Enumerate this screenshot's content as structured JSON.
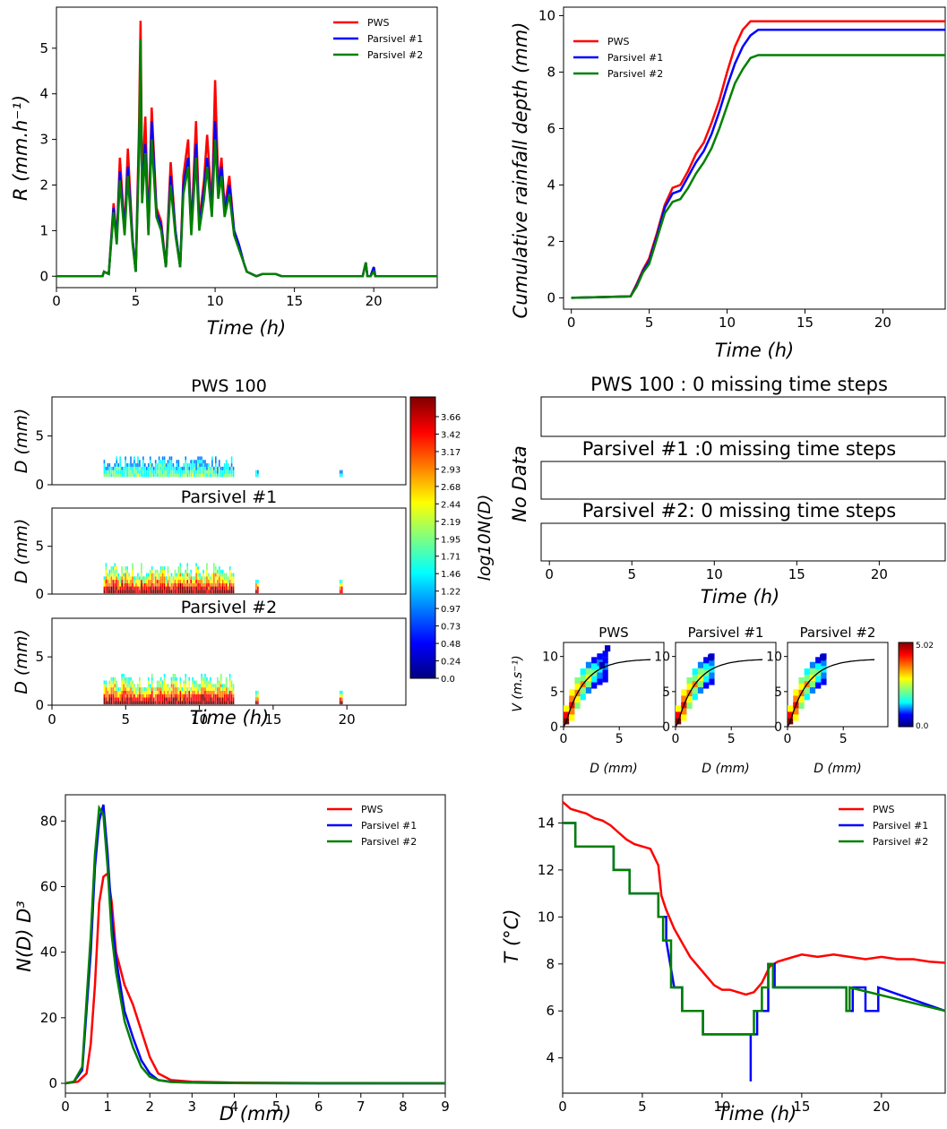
{
  "colors": {
    "pws": "#ff0000",
    "parsivel1": "#0000ff",
    "parsivel2": "#008000",
    "fit": "#000000"
  },
  "legend_labels": [
    "PWS",
    "Parsivel #1",
    "Parsivel #2"
  ],
  "chart_data": [
    {
      "id": "rain_rate",
      "type": "line",
      "xlabel": "Time (h)",
      "ylabel": "R (mm.h⁻¹)",
      "xlim": [
        0,
        24
      ],
      "ylim": [
        -0.25,
        5.9
      ],
      "xticks": [
        0,
        5,
        10,
        15,
        20
      ],
      "yticks": [
        0,
        1,
        2,
        3,
        4,
        5
      ],
      "legend": "top-right",
      "series": [
        {
          "name": "PWS",
          "x": [
            0,
            2.9,
            3.0,
            3.3,
            3.6,
            3.8,
            4.0,
            4.3,
            4.5,
            4.8,
            5.0,
            5.2,
            5.3,
            5.4,
            5.6,
            5.8,
            6.0,
            6.3,
            6.6,
            6.9,
            7.2,
            7.5,
            7.8,
            8.0,
            8.3,
            8.5,
            8.8,
            9.0,
            9.3,
            9.5,
            9.8,
            10.0,
            10.2,
            10.4,
            10.6,
            10.9,
            11.2,
            11.5,
            11.8,
            12.0,
            12.3,
            12.6,
            13.0,
            13.8,
            14.2,
            19.3,
            19.5,
            19.6,
            19.8,
            20.0,
            20.1,
            24
          ],
          "y": [
            0,
            0,
            0.1,
            0.05,
            1.6,
            0.8,
            2.6,
            1.0,
            2.8,
            0.8,
            0.1,
            3.2,
            5.6,
            2.0,
            3.5,
            1.0,
            3.7,
            1.5,
            1.2,
            0.2,
            2.5,
            1.0,
            0.2,
            2.2,
            3.0,
            1.0,
            3.4,
            1.2,
            2.1,
            3.1,
            1.5,
            4.3,
            2.0,
            2.6,
            1.5,
            2.2,
            1.0,
            0.7,
            0.3,
            0.1,
            0.05,
            0,
            0.05,
            0.05,
            0,
            0,
            0.3,
            0,
            0,
            0.2,
            0,
            0
          ]
        },
        {
          "name": "Parsivel #1",
          "x": [
            0,
            2.9,
            3.0,
            3.3,
            3.6,
            3.8,
            4.0,
            4.3,
            4.5,
            4.8,
            5.0,
            5.2,
            5.3,
            5.4,
            5.6,
            5.8,
            6.0,
            6.3,
            6.6,
            6.9,
            7.2,
            7.5,
            7.8,
            8.0,
            8.3,
            8.5,
            8.8,
            9.0,
            9.3,
            9.5,
            9.8,
            10.0,
            10.2,
            10.4,
            10.6,
            10.9,
            11.2,
            11.5,
            11.8,
            12.0,
            12.3,
            12.6,
            13.0,
            13.8,
            14.2,
            19.3,
            19.5,
            19.6,
            19.8,
            20.0,
            20.1,
            24
          ],
          "y": [
            0,
            0,
            0.1,
            0.05,
            1.5,
            0.8,
            2.3,
            1.0,
            2.4,
            0.8,
            0.1,
            2.8,
            4.6,
            1.8,
            2.9,
            1.0,
            3.4,
            1.4,
            1.1,
            0.2,
            2.2,
            1.0,
            0.2,
            2.0,
            2.6,
            1.0,
            2.9,
            1.1,
            1.9,
            2.6,
            1.4,
            3.4,
            1.9,
            2.4,
            1.4,
            2.0,
            1.0,
            0.7,
            0.3,
            0.1,
            0.05,
            0,
            0.05,
            0.05,
            0,
            0,
            0.3,
            0,
            0,
            0.2,
            0,
            0
          ]
        },
        {
          "name": "Parsivel #2",
          "x": [
            0,
            2.9,
            3.0,
            3.3,
            3.6,
            3.8,
            4.0,
            4.3,
            4.5,
            4.8,
            5.0,
            5.2,
            5.3,
            5.4,
            5.6,
            5.8,
            6.0,
            6.3,
            6.6,
            6.9,
            7.2,
            7.5,
            7.8,
            8.0,
            8.3,
            8.5,
            8.8,
            9.0,
            9.3,
            9.5,
            9.8,
            10.0,
            10.2,
            10.4,
            10.6,
            10.9,
            11.2,
            11.5,
            11.8,
            12.0,
            12.3,
            12.6,
            13.0,
            13.8,
            14.2,
            19.3,
            19.5,
            19.6,
            19.8,
            20.0,
            20.1,
            24
          ],
          "y": [
            0,
            0,
            0.1,
            0.05,
            1.4,
            0.7,
            2.1,
            0.9,
            2.2,
            0.7,
            0.1,
            2.6,
            5.2,
            1.6,
            2.7,
            0.9,
            3.0,
            1.3,
            1.0,
            0.2,
            2.0,
            0.9,
            0.2,
            1.8,
            2.4,
            0.9,
            2.6,
            1.0,
            1.7,
            2.4,
            1.3,
            3.0,
            1.7,
            2.2,
            1.3,
            1.8,
            0.9,
            0.6,
            0.3,
            0.1,
            0.05,
            0,
            0.05,
            0.05,
            0,
            0,
            0.3,
            0,
            0,
            0.1,
            0,
            0
          ]
        }
      ]
    },
    {
      "id": "cumulative",
      "type": "line",
      "xlabel": "Time (h)",
      "ylabel": "Cumulative rainfall depth (mm)",
      "xlim": [
        -0.5,
        24
      ],
      "ylim": [
        -0.4,
        10.3
      ],
      "xticks": [
        0,
        5,
        10,
        15,
        20
      ],
      "yticks": [
        0,
        2,
        4,
        6,
        8,
        10
      ],
      "legend": "top-left",
      "series": [
        {
          "name": "PWS",
          "x": [
            0,
            3.8,
            4.2,
            4.6,
            5.0,
            5.5,
            6.0,
            6.5,
            7.0,
            7.5,
            8.0,
            8.5,
            9.0,
            9.5,
            10.0,
            10.5,
            11.0,
            11.5,
            12.0,
            13,
            16,
            20,
            24
          ],
          "y": [
            0,
            0.05,
            0.5,
            1.0,
            1.4,
            2.3,
            3.3,
            3.9,
            4.0,
            4.5,
            5.1,
            5.5,
            6.2,
            7.0,
            8.0,
            8.9,
            9.5,
            9.8,
            9.8,
            9.8,
            9.8,
            9.8,
            9.8
          ]
        },
        {
          "name": "Parsivel #1",
          "x": [
            0,
            3.8,
            4.2,
            4.6,
            5.0,
            5.5,
            6.0,
            6.5,
            7.0,
            7.5,
            8.0,
            8.5,
            9.0,
            9.5,
            10.0,
            10.5,
            11.0,
            11.5,
            12.0,
            13,
            16,
            20,
            24
          ],
          "y": [
            0,
            0.05,
            0.45,
            0.95,
            1.3,
            2.2,
            3.2,
            3.7,
            3.8,
            4.3,
            4.8,
            5.2,
            5.8,
            6.6,
            7.5,
            8.3,
            8.9,
            9.3,
            9.5,
            9.5,
            9.5,
            9.5,
            9.5
          ]
        },
        {
          "name": "Parsivel #2",
          "x": [
            0,
            3.8,
            4.2,
            4.6,
            5.0,
            5.5,
            6.0,
            6.5,
            7.0,
            7.5,
            8.0,
            8.5,
            9.0,
            9.5,
            10.0,
            10.5,
            11.0,
            11.5,
            12.0,
            13,
            16,
            20,
            24
          ],
          "y": [
            0,
            0.05,
            0.4,
            0.9,
            1.2,
            2.1,
            3.0,
            3.4,
            3.5,
            3.9,
            4.4,
            4.8,
            5.3,
            6.0,
            6.8,
            7.6,
            8.1,
            8.5,
            8.6,
            8.6,
            8.6,
            8.6,
            8.6
          ]
        }
      ]
    },
    {
      "id": "spectrograms",
      "type": "heatmap",
      "panel_titles": [
        "PWS 100",
        "Parsivel #1",
        "Parsivel #2"
      ],
      "xlabel": "Time (h)",
      "ylabel": "D (mm)",
      "xlim": [
        0,
        24
      ],
      "ylim": [
        0,
        9
      ],
      "xticks": [
        0,
        5,
        10,
        15,
        20
      ],
      "yticks": [
        0,
        5
      ],
      "colorbar_label": "log10N(D)",
      "colorbar_ticks": [
        "3.66",
        "3.42",
        "3.17",
        "2.93",
        "2.68",
        "2.44",
        "2.19",
        "1.95",
        "1.71",
        "1.46",
        "1.22",
        "0.97",
        "0.73",
        "0.48",
        "0.24",
        "0.0"
      ],
      "active_periods_h": [
        [
          3.5,
          12.3
        ],
        [
          13.8,
          14.0
        ],
        [
          19.5,
          19.7
        ]
      ]
    },
    {
      "id": "missing_data",
      "type": "line",
      "panel_titles": [
        "PWS 100 : 0 missing time steps",
        "Parsivel #1 :0 missing time steps",
        "Parsivel #2: 0 missing time steps"
      ],
      "ylabel": "No Data",
      "xlabel": "Time (h)",
      "xlim": [
        -0.5,
        24
      ],
      "xticks": [
        0,
        5,
        10,
        15,
        20
      ]
    },
    {
      "id": "velocity_diameter",
      "type": "heatmap",
      "panel_titles": [
        "PWS",
        "Parsivel #1",
        "Parsivel #2"
      ],
      "xlabel": "D (mm)",
      "ylabel": "V (m.s⁻¹)",
      "xlim": [
        0,
        9
      ],
      "ylim": [
        0,
        12
      ],
      "xticks": [
        0,
        5
      ],
      "yticks": [
        0,
        5,
        10
      ],
      "colorbar_ticks": [
        "5.02",
        "0.0"
      ]
    },
    {
      "id": "dsd_moment",
      "type": "line",
      "xlabel": "D (mm)",
      "ylabel": "N(D) D³",
      "xlim": [
        0,
        9
      ],
      "ylim": [
        -3,
        88
      ],
      "xticks": [
        0,
        1,
        2,
        3,
        4,
        5,
        6,
        7,
        8,
        9
      ],
      "yticks": [
        0,
        20,
        40,
        60,
        80
      ],
      "legend": "top-right",
      "series": [
        {
          "name": "PWS",
          "x": [
            0,
            0.3,
            0.5,
            0.6,
            0.7,
            0.8,
            0.9,
            1.0,
            1.1,
            1.2,
            1.4,
            1.6,
            1.8,
            2.0,
            2.2,
            2.5,
            3.0,
            4,
            6,
            9
          ],
          "y": [
            0,
            0.5,
            3,
            12,
            30,
            55,
            63,
            64,
            55,
            40,
            30,
            24,
            16,
            8,
            3,
            1,
            0.5,
            0.2,
            0.1,
            0
          ]
        },
        {
          "name": "Parsivel #1",
          "x": [
            0,
            0.2,
            0.4,
            0.6,
            0.7,
            0.8,
            0.9,
            1.0,
            1.1,
            1.2,
            1.4,
            1.6,
            1.8,
            2.0,
            2.2,
            2.5,
            3.0,
            4,
            6,
            9
          ],
          "y": [
            0,
            0.5,
            4,
            40,
            66,
            80,
            85,
            70,
            50,
            38,
            22,
            14,
            7,
            3,
            1,
            0.5,
            0.2,
            0.1,
            0,
            0
          ]
        },
        {
          "name": "Parsivel #2",
          "x": [
            0,
            0.2,
            0.4,
            0.6,
            0.7,
            0.8,
            0.9,
            1.0,
            1.1,
            1.2,
            1.4,
            1.6,
            1.8,
            2.0,
            2.2,
            2.5,
            3.0,
            4,
            6,
            9
          ],
          "y": [
            0,
            0.5,
            5,
            45,
            70,
            84,
            82,
            66,
            45,
            34,
            19,
            11,
            5,
            2,
            1,
            0.4,
            0.2,
            0.1,
            0,
            0
          ]
        }
      ]
    },
    {
      "id": "temperature",
      "type": "line",
      "xlabel": "Time (h)",
      "ylabel": "T (°C)",
      "xlim": [
        0,
        24
      ],
      "ylim": [
        2.5,
        15.2
      ],
      "xticks": [
        0,
        5,
        10,
        15,
        20
      ],
      "yticks": [
        4,
        6,
        8,
        10,
        12,
        14
      ],
      "legend": "top-right",
      "series": [
        {
          "name": "PWS",
          "x": [
            0,
            0.5,
            1.0,
            1.5,
            2.0,
            2.5,
            3.0,
            3.5,
            4.0,
            4.5,
            5.0,
            5.5,
            6.0,
            6.2,
            6.5,
            7.0,
            7.5,
            8.0,
            8.5,
            9.0,
            9.5,
            10.0,
            10.5,
            11.0,
            11.5,
            12.0,
            12.5,
            13.0,
            13.5,
            14.0,
            15.0,
            16.0,
            17.0,
            18.0,
            19.0,
            20.0,
            21.0,
            22.0,
            23.0,
            24.0
          ],
          "y": [
            14.9,
            14.6,
            14.5,
            14.4,
            14.2,
            14.1,
            13.9,
            13.6,
            13.3,
            13.1,
            13.0,
            12.9,
            12.2,
            10.9,
            10.3,
            9.5,
            8.9,
            8.3,
            7.9,
            7.5,
            7.1,
            6.9,
            6.9,
            6.8,
            6.7,
            6.8,
            7.2,
            7.9,
            8.1,
            8.2,
            8.4,
            8.3,
            8.4,
            8.3,
            8.2,
            8.3,
            8.2,
            8.2,
            8.1,
            8.05
          ]
        },
        {
          "name": "Parsivel #1",
          "x": [
            0,
            0.8,
            0.8,
            3.2,
            3.2,
            4.2,
            4.2,
            6.0,
            6.0,
            6.5,
            6.5,
            7.0,
            7.5,
            7.5,
            8.8,
            8.8,
            11.8,
            11.8,
            11.8,
            12.2,
            12.2,
            12.9,
            12.9,
            13.3,
            13.3,
            17.8,
            17.8,
            18.2,
            18.2,
            19.0,
            19.0,
            19.8,
            19.8,
            24
          ],
          "y": [
            14,
            14,
            13,
            13,
            12,
            12,
            11,
            11,
            10,
            10,
            9,
            7,
            7,
            6,
            6,
            5,
            5,
            3,
            5,
            5,
            6,
            6,
            8,
            8,
            7,
            7,
            6,
            6,
            7,
            7,
            6,
            6,
            7,
            6
          ]
        },
        {
          "name": "Parsivel #2",
          "x": [
            0,
            0.8,
            0.8,
            3.2,
            3.2,
            4.2,
            4.2,
            6.0,
            6.0,
            6.3,
            6.3,
            6.8,
            6.8,
            7.5,
            7.5,
            8.8,
            8.8,
            12.0,
            12.0,
            12.5,
            12.5,
            12.9,
            12.9,
            13.2,
            13.2,
            17.8,
            17.8,
            18.0,
            18.0,
            24
          ],
          "y": [
            14,
            14,
            13,
            13,
            12,
            12,
            11,
            11,
            10,
            10,
            9,
            9,
            7,
            7,
            6,
            6,
            5,
            5,
            6,
            6,
            7,
            7,
            8,
            8,
            7,
            7,
            6,
            6,
            7,
            6
          ]
        }
      ]
    }
  ]
}
